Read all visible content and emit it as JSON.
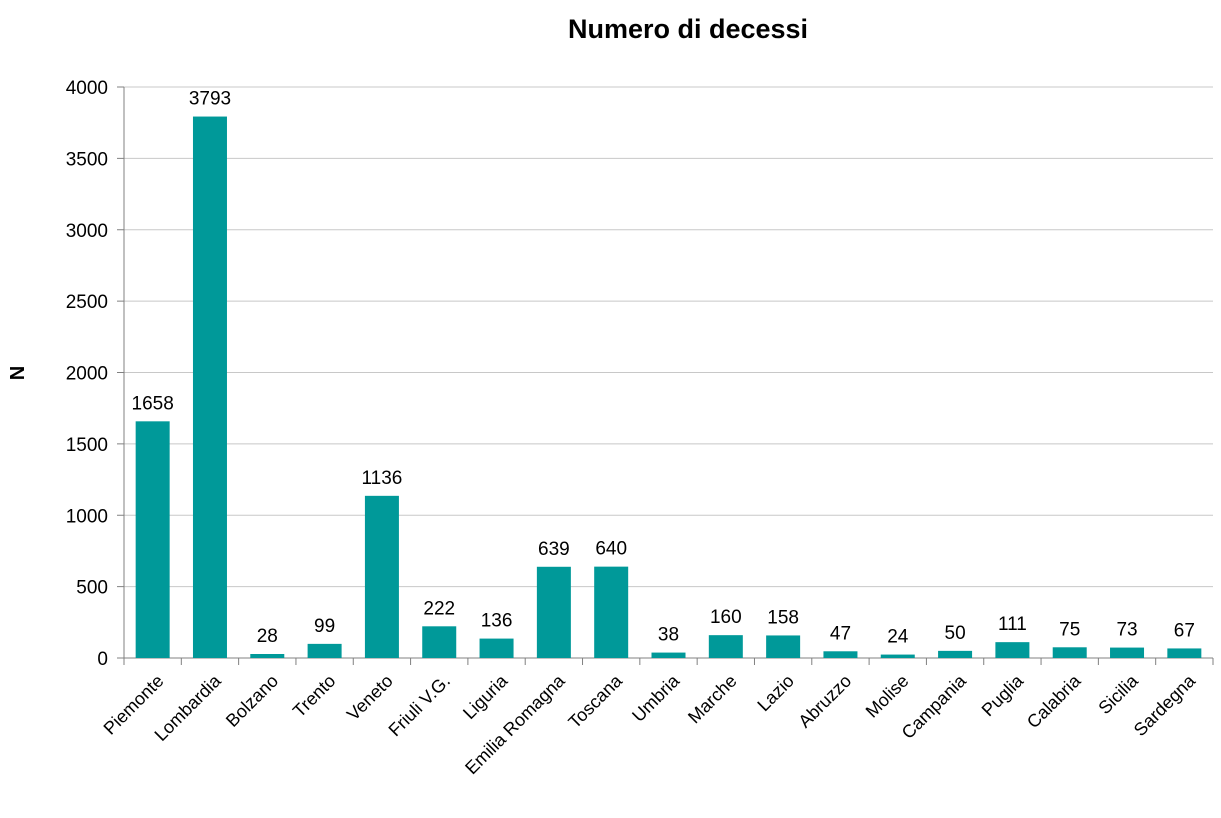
{
  "chart_data": {
    "type": "bar",
    "title": "Numero di decessi",
    "xlabel": "",
    "ylabel": "N",
    "ylim": [
      0,
      4000
    ],
    "yticks": [
      0,
      500,
      1000,
      1500,
      2000,
      2500,
      3000,
      3500,
      4000
    ],
    "grid": true,
    "bar_color": "#009999",
    "categories": [
      "Piemonte",
      "Lombardia",
      "Bolzano",
      "Trento",
      "Veneto",
      "Friuli V.G.",
      "Liguria",
      "Emilia Romagna",
      "Toscana",
      "Umbria",
      "Marche",
      "Lazio",
      "Abruzzo",
      "Molise",
      "Campania",
      "Puglia",
      "Calabria",
      "Sicilia",
      "Sardegna"
    ],
    "values": [
      1658,
      3793,
      28,
      99,
      1136,
      222,
      136,
      639,
      640,
      38,
      160,
      158,
      47,
      24,
      50,
      111,
      75,
      73,
      67
    ]
  }
}
